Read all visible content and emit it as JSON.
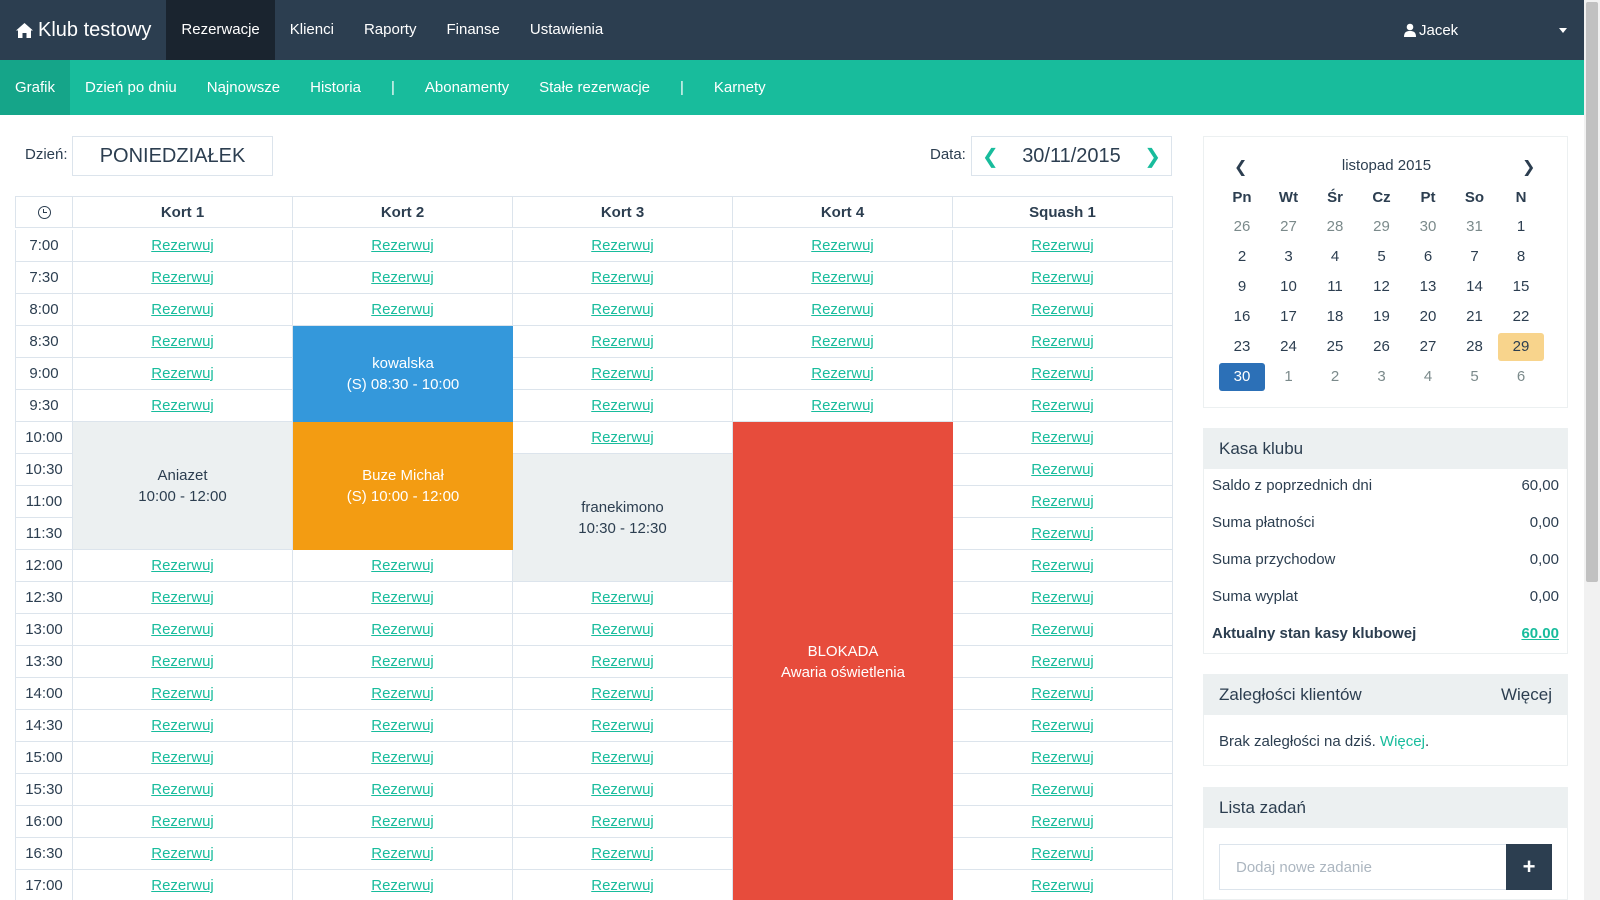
{
  "brand": {
    "icon": "home-icon",
    "name": "Klub testowy"
  },
  "topnav": {
    "items": [
      "Rezerwacje",
      "Klienci",
      "Raporty",
      "Finanse",
      "Ustawienia"
    ],
    "active_index": 0
  },
  "user": {
    "icon": "user-icon",
    "name": "Jacek"
  },
  "subnav": {
    "items": [
      "Grafik",
      "Dzień po dniu",
      "Najnowsze",
      "Historia",
      "|",
      "Abonamenty",
      "Stałe rezerwacje",
      "|",
      "Karnety"
    ],
    "active_index": 0
  },
  "day": {
    "label": "Dzień:",
    "value": "PONIEDZIAŁEK"
  },
  "date": {
    "label": "Data:",
    "value": "30/11/2015"
  },
  "schedule": {
    "time_header_icon": "clock-icon",
    "courts": [
      "Kort 1",
      "Kort 2",
      "Kort 3",
      "Kort 4",
      "Squash 1"
    ],
    "times": [
      "7:00",
      "7:30",
      "8:00",
      "8:30",
      "9:00",
      "9:30",
      "10:00",
      "10:30",
      "11:00",
      "11:30",
      "12:00",
      "12:30",
      "13:00",
      "13:30",
      "14:00",
      "14:30",
      "15:00",
      "15:30",
      "16:00",
      "16:30",
      "17:00"
    ],
    "reserve_label": "Rezerwuj",
    "bookings": [
      {
        "court": 1,
        "start": 3,
        "span": 3,
        "style": "blue",
        "line1": "kowalska",
        "line2": "(S) 08:30 - 10:00"
      },
      {
        "court": 0,
        "start": 6,
        "span": 4,
        "style": "gray",
        "line1": "Aniazet",
        "line2": "10:00 - 12:00"
      },
      {
        "court": 1,
        "start": 6,
        "span": 4,
        "style": "orange",
        "line1": "Buze Michał",
        "line2": "(S) 10:00 - 12:00"
      },
      {
        "court": 2,
        "start": 7,
        "span": 4,
        "style": "gray",
        "line1": "franekimono",
        "line2": "10:30 - 12:30"
      },
      {
        "court": 3,
        "start": 6,
        "span": 15,
        "style": "red",
        "line1": "BLOKADA",
        "line2": "Awaria oświetlenia"
      }
    ]
  },
  "calendar": {
    "month_label": "listopad 2015",
    "dow": [
      "Pn",
      "Wt",
      "Śr",
      "Cz",
      "Pt",
      "So",
      "N"
    ],
    "weeks": [
      [
        "26",
        "27",
        "28",
        "29",
        "30",
        "31",
        "1"
      ],
      [
        "2",
        "3",
        "4",
        "5",
        "6",
        "7",
        "8"
      ],
      [
        "9",
        "10",
        "11",
        "12",
        "13",
        "14",
        "15"
      ],
      [
        "16",
        "17",
        "18",
        "19",
        "20",
        "21",
        "22"
      ],
      [
        "23",
        "24",
        "25",
        "26",
        "27",
        "28",
        "29"
      ],
      [
        "30",
        "1",
        "2",
        "3",
        "4",
        "5",
        "6"
      ]
    ],
    "today": [
      4,
      6
    ],
    "selected": [
      5,
      0
    ]
  },
  "kasa": {
    "title": "Kasa klubu",
    "rows": [
      {
        "label": "Saldo z poprzednich dni",
        "value": "60,00"
      },
      {
        "label": "Suma płatności",
        "value": "0,00"
      },
      {
        "label": "Suma przychodow",
        "value": "0,00"
      },
      {
        "label": "Suma wyplat",
        "value": "0,00"
      }
    ],
    "total_label": "Aktualny stan kasy klubowej",
    "total_value": "60.00"
  },
  "zaleglosci": {
    "title": "Zaległości klientów",
    "more": "Więcej",
    "text": "Brak zaległości na dziś.",
    "link": "Więcej",
    "suffix": "."
  },
  "tasks": {
    "title": "Lista zadań",
    "placeholder": "Dodaj nowe zadanie",
    "add_icon": "plus-icon",
    "add_label": "+"
  }
}
